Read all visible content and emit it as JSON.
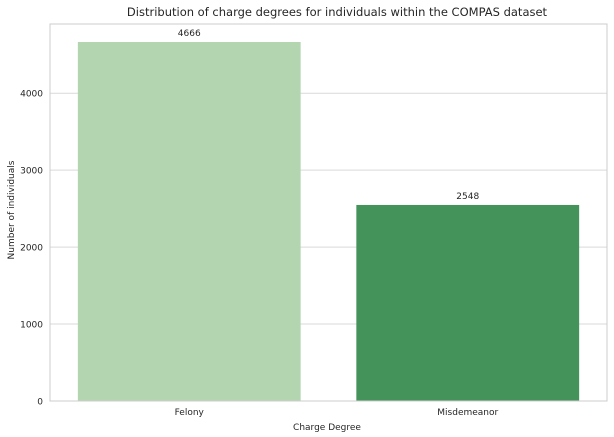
{
  "chart_data": {
    "type": "bar",
    "title": "Distribution of charge degrees for individuals within the COMPAS dataset",
    "xlabel": "Charge Degree",
    "ylabel": "Number of individuals",
    "categories": [
      "Felony",
      "Misdemeanor"
    ],
    "values": [
      4666,
      2548
    ],
    "value_labels": [
      "4666",
      "2548"
    ],
    "colors": [
      "#b3d6b0",
      "#43935a"
    ],
    "ylim": [
      0,
      4900
    ],
    "yticks": [
      0,
      1000,
      2000,
      3000,
      4000
    ],
    "ytick_labels": [
      "0",
      "1000",
      "2000",
      "3000",
      "4000"
    ],
    "grid": "horizontal",
    "legend": "none"
  }
}
